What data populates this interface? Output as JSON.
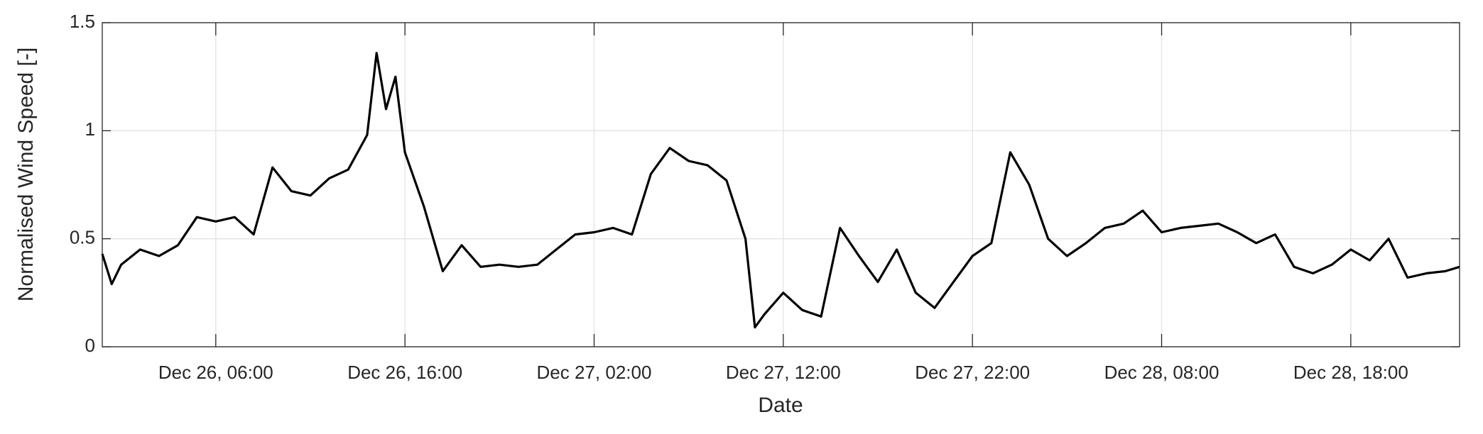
{
  "chart_data": {
    "type": "line",
    "xlabel": "Date",
    "ylabel": "Normalised Wind Speed [-]",
    "x": [
      "Dec 26, 00:00",
      "Dec 26, 00:30",
      "Dec 26, 01:00",
      "Dec 26, 02:00",
      "Dec 26, 03:00",
      "Dec 26, 04:00",
      "Dec 26, 05:00",
      "Dec 26, 06:00",
      "Dec 26, 07:00",
      "Dec 26, 08:00",
      "Dec 26, 09:00",
      "Dec 26, 10:00",
      "Dec 26, 11:00",
      "Dec 26, 12:00",
      "Dec 26, 13:00",
      "Dec 26, 14:00",
      "Dec 26, 14:30",
      "Dec 26, 15:00",
      "Dec 26, 15:30",
      "Dec 26, 16:00",
      "Dec 26, 17:00",
      "Dec 26, 18:00",
      "Dec 26, 19:00",
      "Dec 26, 20:00",
      "Dec 26, 21:00",
      "Dec 26, 22:00",
      "Dec 26, 23:00",
      "Dec 27, 00:00",
      "Dec 27, 01:00",
      "Dec 27, 02:00",
      "Dec 27, 03:00",
      "Dec 27, 04:00",
      "Dec 27, 05:00",
      "Dec 27, 06:00",
      "Dec 27, 07:00",
      "Dec 27, 08:00",
      "Dec 27, 09:00",
      "Dec 27, 10:00",
      "Dec 27, 10:30",
      "Dec 27, 11:00",
      "Dec 27, 12:00",
      "Dec 27, 13:00",
      "Dec 27, 14:00",
      "Dec 27, 15:00",
      "Dec 27, 16:00",
      "Dec 27, 17:00",
      "Dec 27, 18:00",
      "Dec 27, 19:00",
      "Dec 27, 20:00",
      "Dec 27, 21:00",
      "Dec 27, 22:00",
      "Dec 27, 23:00",
      "Dec 28, 00:00",
      "Dec 28, 01:00",
      "Dec 28, 02:00",
      "Dec 28, 03:00",
      "Dec 28, 04:00",
      "Dec 28, 05:00",
      "Dec 28, 06:00",
      "Dec 28, 07:00",
      "Dec 28, 08:00",
      "Dec 28, 09:00",
      "Dec 28, 10:00",
      "Dec 28, 11:00",
      "Dec 28, 12:00",
      "Dec 28, 13:00",
      "Dec 28, 14:00",
      "Dec 28, 15:00",
      "Dec 28, 16:00",
      "Dec 28, 17:00",
      "Dec 28, 18:00",
      "Dec 28, 19:00",
      "Dec 28, 20:00",
      "Dec 28, 21:00",
      "Dec 28, 22:00",
      "Dec 28, 23:00",
      "Dec 28, 23:45"
    ],
    "values": [
      0.43,
      0.29,
      0.38,
      0.45,
      0.42,
      0.47,
      0.6,
      0.58,
      0.6,
      0.52,
      0.83,
      0.72,
      0.7,
      0.78,
      0.82,
      0.98,
      1.36,
      1.1,
      1.25,
      0.9,
      0.65,
      0.35,
      0.47,
      0.37,
      0.38,
      0.37,
      0.38,
      0.45,
      0.52,
      0.53,
      0.55,
      0.52,
      0.8,
      0.92,
      0.86,
      0.84,
      0.77,
      0.5,
      0.09,
      0.15,
      0.25,
      0.17,
      0.14,
      0.55,
      0.42,
      0.3,
      0.45,
      0.25,
      0.18,
      0.3,
      0.42,
      0.48,
      0.9,
      0.75,
      0.5,
      0.42,
      0.48,
      0.55,
      0.57,
      0.63,
      0.53,
      0.55,
      0.56,
      0.57,
      0.53,
      0.48,
      0.52,
      0.37,
      0.34,
      0.38,
      0.45,
      0.4,
      0.5,
      0.32,
      0.34,
      0.35,
      0.37
    ],
    "color": "#000000",
    "xlim": [
      "Dec 26, 00:00",
      "Dec 28, 23:45"
    ],
    "xticks": [
      "Dec 26, 06:00",
      "Dec 26, 16:00",
      "Dec 27, 02:00",
      "Dec 27, 12:00",
      "Dec 27, 22:00",
      "Dec 28, 08:00",
      "Dec 28, 18:00"
    ],
    "ylim": [
      0,
      1.5
    ],
    "yticks": [
      0,
      0.5,
      1,
      1.5
    ],
    "grid": true
  }
}
